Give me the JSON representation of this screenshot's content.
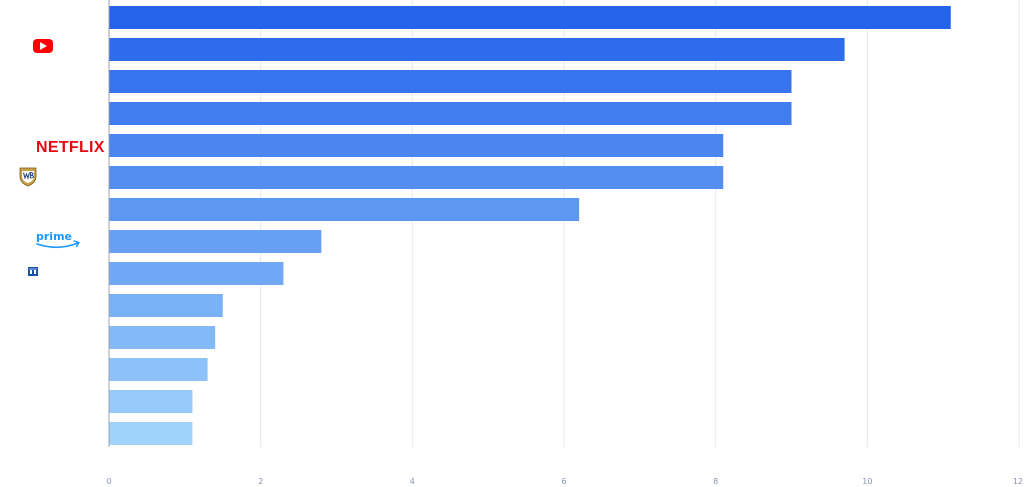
{
  "chart_data": {
    "type": "bar",
    "orientation": "horizontal",
    "categories": [
      "",
      "youtube",
      "",
      "",
      "netflix",
      "warner-bros",
      "",
      "prime-video",
      "small-blue-logo",
      "",
      "",
      "",
      "",
      ""
    ],
    "values": [
      11.1,
      9.7,
      9.0,
      9.0,
      8.1,
      8.1,
      6.2,
      2.8,
      2.3,
      1.5,
      1.4,
      1.3,
      1.1,
      1.1
    ],
    "xlim": [
      0,
      12
    ],
    "xticks": [
      0,
      2,
      4,
      6,
      8,
      10,
      12
    ],
    "grid": true,
    "title": "",
    "xlabel": "",
    "ylabel": "",
    "colors": {
      "bar_start": "#2563eb",
      "bar_end": "#9fd3fb",
      "grid": "#e5e7eb",
      "axis": "#9ca3af",
      "tick_text": "#8a93b5"
    },
    "logos": {
      "youtube": {
        "icon": "youtube-icon",
        "color": "#ff0000"
      },
      "netflix": {
        "text": "NETFLIX",
        "color": "#e50914"
      },
      "warner-bros": {
        "icon": "warner-bros-shield-icon",
        "color": "#c8a04a"
      },
      "prime-video": {
        "text": "prime",
        "color": "#1a98ff"
      },
      "small-blue-logo": {
        "icon": "small-blue-logo-icon",
        "color": "#1f4fa3"
      }
    }
  }
}
